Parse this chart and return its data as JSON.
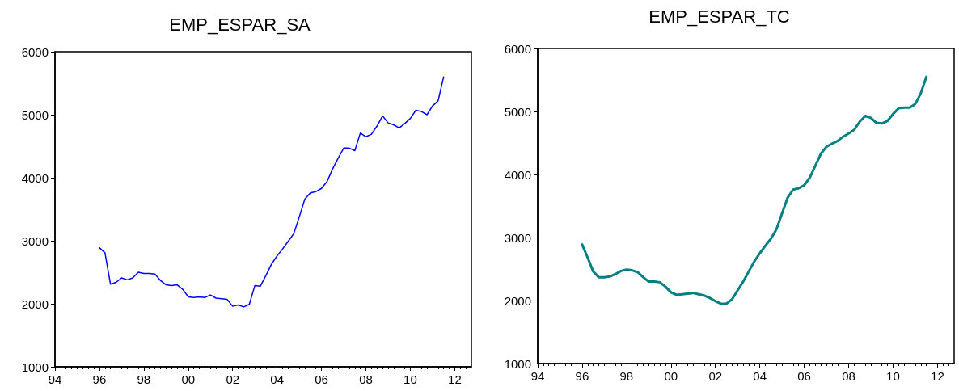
{
  "chart_data": [
    {
      "type": "line",
      "title": "EMP_ESPAR_SA",
      "grid": false,
      "marker": "none",
      "line_style": "solid",
      "x": [
        1996,
        1996.25,
        1996.5,
        1996.75,
        1997,
        1997.25,
        1997.5,
        1997.75,
        1998,
        1998.25,
        1998.5,
        1998.75,
        1999,
        1999.25,
        1999.5,
        1999.75,
        2000,
        2000.25,
        2000.5,
        2000.75,
        2001,
        2001.25,
        2001.5,
        2001.75,
        2002,
        2002.25,
        2002.5,
        2002.75,
        2003,
        2003.25,
        2003.5,
        2003.75,
        2004,
        2004.25,
        2004.5,
        2004.75,
        2005,
        2005.25,
        2005.5,
        2005.75,
        2006,
        2006.25,
        2006.5,
        2006.75,
        2007,
        2007.25,
        2007.5,
        2007.75,
        2008,
        2008.25,
        2008.5,
        2008.75,
        2009,
        2009.25,
        2009.5,
        2009.75,
        2010,
        2010.25,
        2010.5,
        2010.75,
        2011,
        2011.25,
        2011.5
      ],
      "series": [
        {
          "color": "#0000ff",
          "values": [
            2890,
            2810,
            2310,
            2340,
            2410,
            2380,
            2410,
            2500,
            2480,
            2480,
            2470,
            2370,
            2300,
            2290,
            2300,
            2230,
            2110,
            2100,
            2110,
            2100,
            2140,
            2090,
            2080,
            2070,
            1960,
            1980,
            1950,
            1990,
            2290,
            2280,
            2450,
            2630,
            2760,
            2870,
            2990,
            3110,
            3380,
            3660,
            3760,
            3780,
            3830,
            3940,
            4140,
            4310,
            4470,
            4470,
            4430,
            4710,
            4650,
            4690,
            4820,
            4980,
            4870,
            4840,
            4790,
            4860,
            4940,
            5070,
            5050,
            5000,
            5140,
            5220,
            5600
          ]
        }
      ],
      "xlim": [
        1994,
        2012.75
      ],
      "xticks": [
        {
          "value": 1994,
          "label": "94"
        },
        {
          "value": 1996,
          "label": "96"
        },
        {
          "value": 1998,
          "label": "98"
        },
        {
          "value": 2000,
          "label": "00"
        },
        {
          "value": 2002,
          "label": "02"
        },
        {
          "value": 2004,
          "label": "04"
        },
        {
          "value": 2006,
          "label": "06"
        },
        {
          "value": 2008,
          "label": "08"
        },
        {
          "value": 2010,
          "label": "10"
        },
        {
          "value": 2012,
          "label": "12"
        }
      ],
      "ylim": [
        1000,
        6000
      ],
      "yticks": [
        1000,
        2000,
        3000,
        4000,
        5000,
        6000
      ]
    },
    {
      "type": "line",
      "title": "EMP_ESPAR_TC",
      "grid": false,
      "marker": "none",
      "line_style": "solid",
      "x": [
        1996,
        1996.25,
        1996.5,
        1996.75,
        1997,
        1997.25,
        1997.5,
        1997.75,
        1998,
        1998.25,
        1998.5,
        1998.75,
        1999,
        1999.25,
        1999.5,
        1999.75,
        2000,
        2000.25,
        2000.5,
        2000.75,
        2001,
        2001.25,
        2001.5,
        2001.75,
        2002,
        2002.25,
        2002.5,
        2002.75,
        2003,
        2003.25,
        2003.5,
        2003.75,
        2004,
        2004.25,
        2004.5,
        2004.75,
        2005,
        2005.25,
        2005.5,
        2005.75,
        2006,
        2006.25,
        2006.5,
        2006.75,
        2007,
        2007.25,
        2007.5,
        2007.75,
        2008,
        2008.25,
        2008.5,
        2008.75,
        2009,
        2009.25,
        2009.5,
        2009.75,
        2010,
        2010.25,
        2010.5,
        2010.75,
        2011,
        2011.25,
        2011.5
      ],
      "series": [
        {
          "color": "#008080",
          "values": [
            2890,
            2680,
            2460,
            2370,
            2370,
            2380,
            2420,
            2470,
            2490,
            2480,
            2450,
            2370,
            2300,
            2300,
            2290,
            2220,
            2130,
            2090,
            2100,
            2110,
            2120,
            2100,
            2080,
            2040,
            1990,
            1950,
            1950,
            2020,
            2160,
            2300,
            2460,
            2620,
            2750,
            2870,
            2980,
            3130,
            3380,
            3630,
            3760,
            3780,
            3830,
            3950,
            4140,
            4330,
            4440,
            4490,
            4530,
            4600,
            4650,
            4710,
            4840,
            4930,
            4900,
            4820,
            4810,
            4850,
            4960,
            5050,
            5060,
            5060,
            5120,
            5290,
            5550
          ]
        }
      ],
      "xlim": [
        1994,
        2012.75
      ],
      "xticks": [
        {
          "value": 1994,
          "label": "94"
        },
        {
          "value": 1996,
          "label": "96"
        },
        {
          "value": 1998,
          "label": "98"
        },
        {
          "value": 2000,
          "label": "00"
        },
        {
          "value": 2002,
          "label": "02"
        },
        {
          "value": 2004,
          "label": "04"
        },
        {
          "value": 2006,
          "label": "06"
        },
        {
          "value": 2008,
          "label": "08"
        },
        {
          "value": 2010,
          "label": "10"
        },
        {
          "value": 2012,
          "label": "12"
        }
      ],
      "ylim": [
        1000,
        6000
      ],
      "yticks": [
        1000,
        2000,
        3000,
        4000,
        5000,
        6000
      ]
    }
  ]
}
